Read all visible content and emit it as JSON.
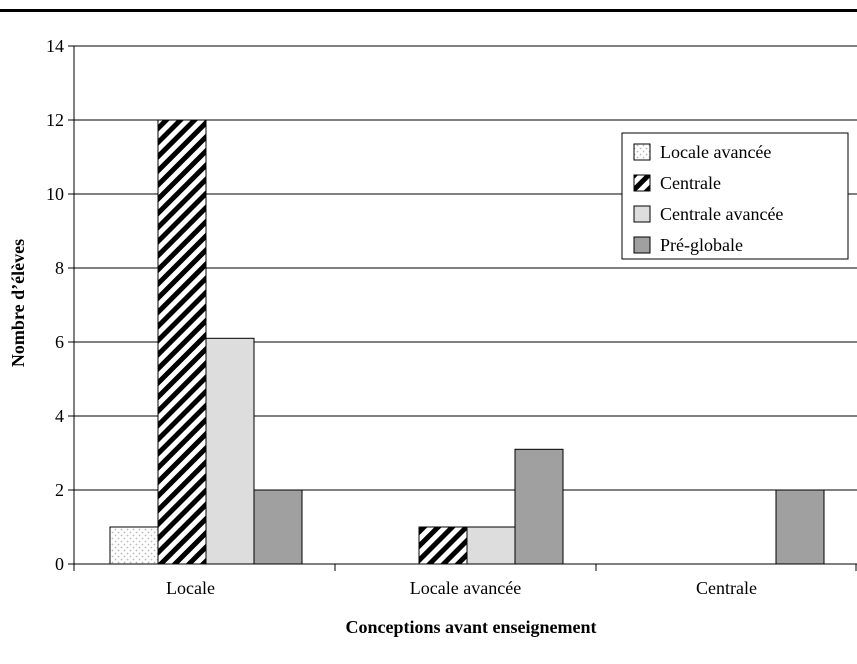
{
  "chart_data": {
    "type": "bar",
    "title": "",
    "xlabel": "Conceptions avant enseignement",
    "ylabel": "Nombre d’élèves",
    "categories": [
      "Locale",
      "Locale avancée",
      "Centrale"
    ],
    "ylim": [
      0,
      14
    ],
    "yticks": [
      "0",
      "2",
      "4",
      "6",
      "8",
      "10",
      "12",
      "14"
    ],
    "grid": true,
    "legend_position": "top-right",
    "series": [
      {
        "name": "Locale avancée",
        "values": [
          1,
          0,
          0
        ],
        "pattern": "dots",
        "color": "#e6e6e6"
      },
      {
        "name": "Centrale",
        "values": [
          12,
          1,
          0
        ],
        "pattern": "diagonal-stripes",
        "color": "#000000"
      },
      {
        "name": "Centrale avancée",
        "values": [
          6.1,
          1,
          0
        ],
        "pattern": "solid",
        "color": "#dddddd"
      },
      {
        "name": "Pré-globale",
        "values": [
          2,
          3.1,
          2
        ],
        "pattern": "solid",
        "color": "#a0a0a0"
      }
    ]
  }
}
